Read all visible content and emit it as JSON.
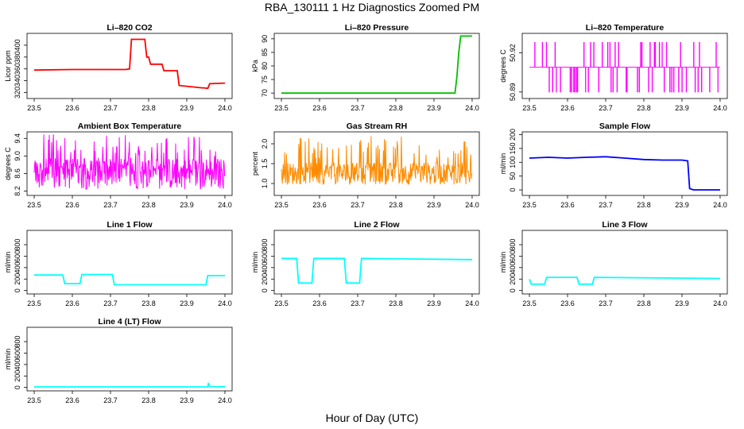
{
  "title": "RBA_130111  1 Hz Diagnostics Zoomed PM",
  "xlabel": "Hour of Day (UTC)",
  "chart_data": [
    {
      "type": "line",
      "title": "Li–820 CO2",
      "ylabel": "Licor ppm",
      "xlim": [
        23.5,
        24.0
      ],
      "ylim": [
        310,
        420
      ],
      "xticks": [
        "23.5",
        "23.6",
        "23.7",
        "23.8",
        "23.9",
        "24.0"
      ],
      "yticks": [
        "320",
        "340",
        "360",
        "380",
        "400"
      ],
      "color": "#ff0000",
      "x": [
        23.5,
        23.6,
        23.74,
        23.75,
        23.755,
        23.79,
        23.795,
        23.8,
        23.805,
        23.835,
        23.84,
        23.875,
        23.88,
        23.94,
        23.945,
        23.955,
        23.96,
        24.0
      ],
      "y": [
        358,
        359,
        359,
        360,
        410,
        410,
        380,
        380,
        368,
        368,
        357,
        357,
        332,
        328,
        328,
        327,
        335,
        336
      ]
    },
    {
      "type": "line",
      "title": "Li–820 Pressure",
      "ylabel": "kPa",
      "xlim": [
        23.5,
        24.0
      ],
      "ylim": [
        68,
        92
      ],
      "xticks": [
        "23.5",
        "23.6",
        "23.7",
        "23.8",
        "23.9",
        "24.0"
      ],
      "yticks": [
        "70",
        "75",
        "80",
        "85",
        "90"
      ],
      "color": "#00c000",
      "x": [
        23.5,
        23.9,
        23.91,
        23.955,
        23.96,
        23.965,
        23.97,
        24.0
      ],
      "y": [
        70,
        70,
        70,
        70,
        76,
        85,
        91,
        91
      ]
    },
    {
      "type": "line",
      "title": "Li–820 Temperature",
      "ylabel": "degrees C",
      "xlim": [
        23.5,
        24.0
      ],
      "ylim": [
        50.885,
        50.935
      ],
      "xticks": [
        "23.5",
        "23.6",
        "23.7",
        "23.8",
        "23.9",
        "24.0"
      ],
      "yticks": [
        "50.89",
        "50.92"
      ],
      "color": "#ff00ff",
      "levels": [
        50.89,
        50.909,
        50.928
      ],
      "base": 50.909
    },
    {
      "type": "line",
      "title": "Ambient Box Temperature",
      "ylabel": "degrees C",
      "xlim": [
        23.5,
        24.0
      ],
      "ylim": [
        8.1,
        9.55
      ],
      "xticks": [
        "23.5",
        "23.6",
        "23.7",
        "23.8",
        "23.9",
        "24.0"
      ],
      "yticks": [
        "8.2",
        "8.6",
        "9.0",
        "9.4"
      ],
      "color": "#ff00ff",
      "mean": 8.6,
      "range": [
        8.15,
        9.5
      ]
    },
    {
      "type": "line",
      "title": "Gas Stream RH",
      "ylabel": "percent",
      "xlim": [
        23.5,
        24.0
      ],
      "ylim": [
        0.7,
        2.3
      ],
      "xticks": [
        "23.5",
        "23.6",
        "23.7",
        "23.8",
        "23.9",
        "24.0"
      ],
      "yticks": [
        "1.0",
        "1.5",
        "2.0"
      ],
      "color": "#ff8c00",
      "mean": 1.25,
      "range": [
        0.9,
        2.2
      ]
    },
    {
      "type": "line",
      "title": "Sample Flow",
      "ylabel": "ml/min",
      "xlim": [
        23.5,
        24.0
      ],
      "ylim": [
        -20,
        210
      ],
      "xticks": [
        "23.5",
        "23.6",
        "23.7",
        "23.8",
        "23.9",
        "24.0"
      ],
      "yticks": [
        "0",
        "50",
        "100",
        "150",
        "200"
      ],
      "color": "#0000ff",
      "x": [
        23.5,
        23.55,
        23.6,
        23.65,
        23.7,
        23.75,
        23.8,
        23.85,
        23.9,
        23.915,
        23.92,
        23.93,
        24.0
      ],
      "y": [
        115,
        118,
        115,
        118,
        120,
        115,
        110,
        108,
        108,
        105,
        5,
        0,
        0
      ]
    },
    {
      "type": "line",
      "title": "Line 1 Flow",
      "ylabel": "ml/min",
      "xlim": [
        23.5,
        24.0
      ],
      "ylim": [
        -60,
        1050
      ],
      "xticks": [
        "23.5",
        "23.6",
        "23.7",
        "23.8",
        "23.9",
        "24.0"
      ],
      "yticks": [
        "0",
        "200",
        "400",
        "600",
        "800"
      ],
      "color": "#00ffff",
      "x": [
        23.5,
        23.575,
        23.58,
        23.62,
        23.625,
        23.705,
        23.71,
        23.95,
        23.955,
        24.0
      ],
      "y": [
        270,
        270,
        120,
        120,
        280,
        280,
        100,
        100,
        260,
        260
      ]
    },
    {
      "type": "line",
      "title": "Line 2 Flow",
      "ylabel": "ml/min",
      "xlim": [
        23.5,
        24.0
      ],
      "ylim": [
        -60,
        1050
      ],
      "xticks": [
        "23.5",
        "23.6",
        "23.7",
        "23.8",
        "23.9",
        "24.0"
      ],
      "yticks": [
        "0",
        "200",
        "400",
        "600",
        "800"
      ],
      "color": "#00ffff",
      "x": [
        23.5,
        23.54,
        23.545,
        23.58,
        23.585,
        23.665,
        23.67,
        23.705,
        23.71,
        24.0
      ],
      "y": [
        560,
        560,
        130,
        130,
        560,
        560,
        130,
        130,
        560,
        540
      ]
    },
    {
      "type": "line",
      "title": "Line 3 Flow",
      "ylabel": "ml/min",
      "xlim": [
        23.5,
        24.0
      ],
      "ylim": [
        -60,
        1050
      ],
      "xticks": [
        "23.5",
        "23.6",
        "23.7",
        "23.8",
        "23.9",
        "24.0"
      ],
      "yticks": [
        "0",
        "200",
        "400",
        "600",
        "800"
      ],
      "color": "#00ffff",
      "x": [
        23.5,
        23.505,
        23.54,
        23.545,
        23.625,
        23.63,
        23.665,
        23.67,
        24.0
      ],
      "y": [
        200,
        110,
        110,
        230,
        230,
        110,
        110,
        230,
        210
      ]
    },
    {
      "type": "line",
      "title": "Line 4 (LT) Flow",
      "ylabel": "ml/min",
      "xlim": [
        23.5,
        24.0
      ],
      "ylim": [
        -60,
        1050
      ],
      "xticks": [
        "23.5",
        "23.6",
        "23.7",
        "23.8",
        "23.9",
        "24.0"
      ],
      "yticks": [
        "0",
        "200",
        "400",
        "600",
        "800"
      ],
      "color": "#00ffff",
      "x": [
        23.5,
        23.955,
        23.957,
        23.96,
        24.0
      ],
      "y": [
        10,
        10,
        80,
        15,
        12
      ]
    }
  ]
}
